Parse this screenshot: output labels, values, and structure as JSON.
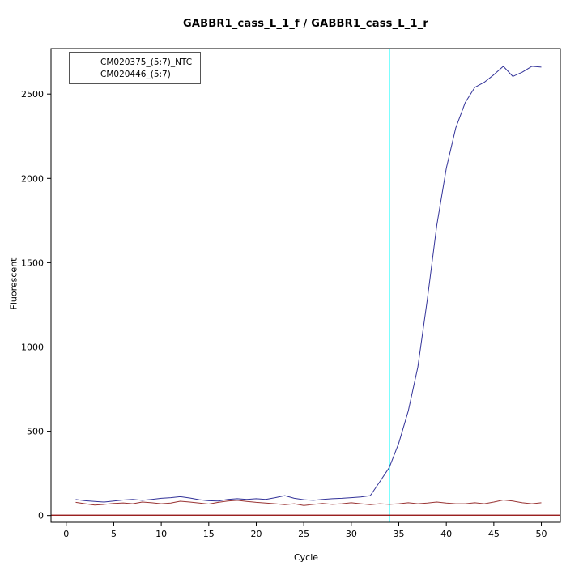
{
  "chart_data": {
    "type": "line",
    "title": "GABBR1_cass_L_1_f / GABBR1_cass_L_1_r",
    "xlabel": "Cycle",
    "ylabel": "Fluorescent",
    "xlim": [
      0,
      50
    ],
    "ylim": [
      0,
      2500
    ],
    "x_ticks": [
      0,
      5,
      10,
      15,
      20,
      25,
      30,
      35,
      40,
      45,
      50
    ],
    "y_ticks": [
      0,
      500,
      1000,
      1500,
      2000,
      2500
    ],
    "grid": false,
    "legend_position": "top-left",
    "x": [
      1,
      2,
      3,
      4,
      5,
      6,
      7,
      8,
      9,
      10,
      11,
      12,
      13,
      14,
      15,
      16,
      17,
      18,
      19,
      20,
      21,
      22,
      23,
      24,
      25,
      26,
      27,
      28,
      29,
      30,
      31,
      32,
      33,
      34,
      35,
      36,
      37,
      38,
      39,
      40,
      41,
      42,
      43,
      44,
      45,
      46,
      47,
      48,
      49,
      50
    ],
    "series": [
      {
        "name": "CM020375_(5:7)_NTC",
        "color": "#993333",
        "values": [
          78,
          70,
          62,
          66,
          72,
          75,
          70,
          80,
          76,
          70,
          74,
          85,
          80,
          74,
          68,
          78,
          86,
          90,
          84,
          78,
          74,
          70,
          64,
          70,
          60,
          66,
          72,
          66,
          70,
          76,
          70,
          64,
          70,
          66,
          70,
          76,
          70,
          74,
          80,
          74,
          70,
          70,
          76,
          70,
          80,
          92,
          86,
          76,
          70,
          76
        ]
      },
      {
        "name": "CM020446_(5:7)",
        "color": "#333399",
        "values": [
          95,
          88,
          84,
          80,
          86,
          92,
          96,
          90,
          96,
          102,
          106,
          112,
          104,
          94,
          88,
          86,
          96,
          100,
          96,
          100,
          96,
          106,
          118,
          102,
          94,
          90,
          96,
          100,
          102,
          106,
          110,
          118,
          200,
          285,
          430,
          620,
          880,
          1280,
          1720,
          2060,
          2300,
          2450,
          2540,
          2570,
          2615,
          2665,
          2605,
          2630,
          2665,
          2660
        ]
      }
    ],
    "threshold_cycle_line": {
      "x": 34,
      "color": "#00ffff"
    },
    "baseline_line": {
      "y": 2,
      "color": "#8b0000"
    },
    "axis_color": "#000000"
  }
}
